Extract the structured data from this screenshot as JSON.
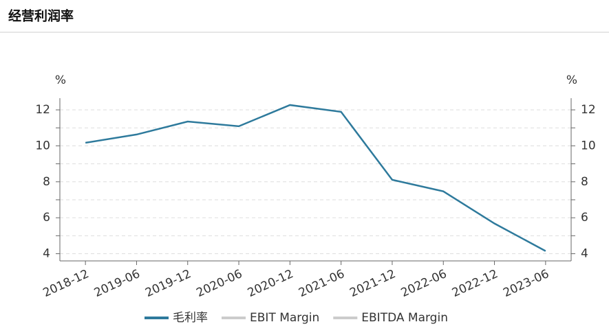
{
  "chart_data": {
    "type": "line",
    "title": "经营利润率",
    "y_unit": "%",
    "y2_unit": "%",
    "categories": [
      "2018-12",
      "2019-06",
      "2019-12",
      "2020-06",
      "2020-12",
      "2021-06",
      "2021-12",
      "2022-06",
      "2022-12",
      "2023-06"
    ],
    "series": [
      {
        "name": "毛利率",
        "color": "#2e7a9c",
        "values": [
          10.17,
          10.63,
          11.35,
          11.09,
          12.27,
          11.89,
          8.11,
          7.47,
          5.68,
          4.15
        ]
      },
      {
        "name": "EBIT Margin",
        "color": "#cccccc",
        "hidden": true,
        "values": [
          null,
          null,
          null,
          null,
          null,
          null,
          null,
          null,
          null,
          null
        ]
      },
      {
        "name": "EBITDA Margin",
        "color": "#cccccc",
        "hidden": true,
        "values": [
          null,
          null,
          null,
          null,
          null,
          null,
          null,
          null,
          null,
          null
        ]
      }
    ],
    "ylim": [
      3.6,
      12.65
    ],
    "yticks": [
      4,
      6,
      8,
      10,
      12
    ],
    "minor_yticks": [
      5,
      7,
      9,
      11
    ],
    "y2lim": [
      3.6,
      12.65
    ],
    "y2ticks": [
      4,
      6,
      8,
      10,
      12
    ],
    "grid": true
  }
}
